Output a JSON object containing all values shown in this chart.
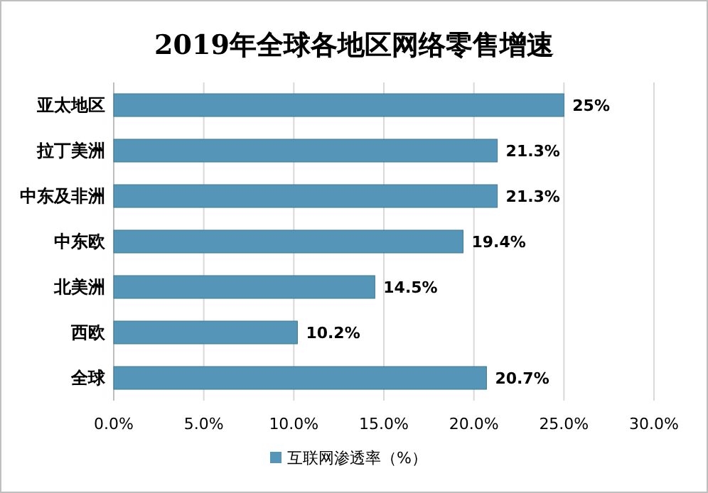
{
  "chart_data": {
    "type": "bar",
    "orientation": "horizontal",
    "title": "2019年全球各地区网络零售增速",
    "categories": [
      "亚太地区",
      "拉丁美洲",
      "中东及非洲",
      "中东欧",
      "北美洲",
      "西欧",
      "全球"
    ],
    "series": [
      {
        "name": "互联网渗透率（%）",
        "color": "#5596b8",
        "values": [
          25,
          21.3,
          21.3,
          19.4,
          14.5,
          10.2,
          20.7
        ],
        "value_labels": [
          "25%",
          "21.3%",
          "21.3%",
          "19.4%",
          "14.5%",
          "10.2%",
          "20.7%"
        ]
      }
    ],
    "xlim": [
      0,
      30
    ],
    "xticks": [
      {
        "value": 0,
        "label": "0.0%"
      },
      {
        "value": 5,
        "label": "5.0%"
      },
      {
        "value": 10,
        "label": "10.0%"
      },
      {
        "value": 15,
        "label": "15.0%"
      },
      {
        "value": 20,
        "label": "20.0%"
      },
      {
        "value": 25,
        "label": "25.0%"
      },
      {
        "value": 30,
        "label": "30.0%"
      }
    ],
    "grid": "x",
    "legend": "bottom"
  }
}
